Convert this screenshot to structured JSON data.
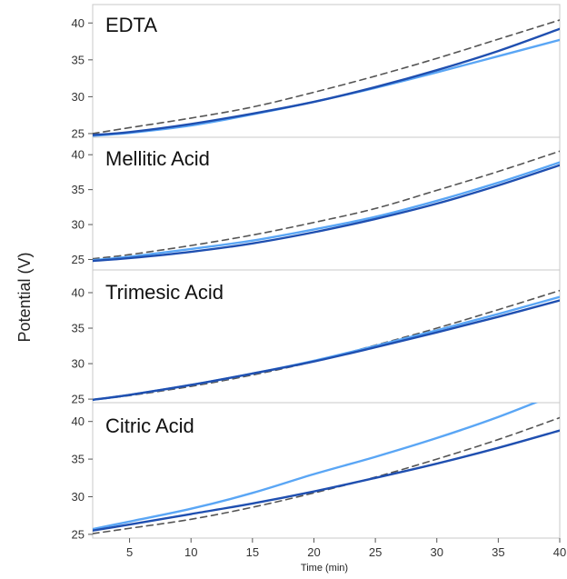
{
  "chart_data": {
    "type": "line",
    "ylabel": "Potential (V)",
    "xlabel": "Time (min)",
    "xlim": [
      2,
      40
    ],
    "x_ticks": [
      5,
      10,
      15,
      20,
      25,
      30,
      35,
      40
    ],
    "y_ticks": [
      25,
      30,
      35,
      40
    ],
    "grid": false,
    "colors": {
      "dark_series": "#1f4fb0",
      "light_series": "#5aa6f5",
      "dashed_series": "#555555"
    },
    "x": [
      2,
      5,
      10,
      15,
      20,
      25,
      30,
      35,
      40
    ],
    "panels": [
      {
        "title": "EDTA",
        "ylim": [
          24.5,
          42.5
        ],
        "series": [
          {
            "style": "dark",
            "values": [
              24.8,
              25.2,
              26.3,
              27.7,
              29.3,
              31.3,
              33.6,
              36.2,
              39.2
            ]
          },
          {
            "style": "light",
            "values": [
              24.7,
              25.1,
              26.1,
              27.6,
              29.3,
              31.2,
              33.3,
              35.5,
              37.7
            ]
          },
          {
            "style": "dashed",
            "values": [
              25.0,
              25.8,
              27.1,
              28.6,
              30.6,
              32.8,
              35.2,
              37.8,
              40.4
            ]
          }
        ]
      },
      {
        "title": "Mellitic Acid",
        "ylim": [
          23.5,
          42.5
        ],
        "series": [
          {
            "style": "dark",
            "values": [
              24.8,
              25.2,
              26.1,
              27.3,
              28.9,
              30.8,
              33.0,
              35.6,
              38.5
            ]
          },
          {
            "style": "light",
            "values": [
              24.9,
              25.4,
              26.5,
              27.7,
              29.3,
              31.1,
              33.4,
              36.0,
              38.9
            ]
          },
          {
            "style": "dashed",
            "values": [
              25.1,
              25.7,
              27.0,
              28.5,
              30.3,
              32.3,
              34.9,
              37.6,
              40.5
            ]
          }
        ]
      },
      {
        "title": "Trimesic Acid",
        "ylim": [
          24.5,
          43.2
        ],
        "series": [
          {
            "style": "dark",
            "values": [
              24.9,
              25.6,
              27.0,
              28.6,
              30.3,
              32.3,
              34.4,
              36.6,
              38.9
            ]
          },
          {
            "style": "light",
            "values": [
              24.9,
              25.6,
              27.0,
              28.6,
              30.4,
              32.5,
              34.7,
              37.0,
              39.4
            ]
          },
          {
            "style": "dashed",
            "values": [
              24.9,
              25.5,
              26.8,
              28.4,
              30.3,
              32.6,
              35.0,
              37.6,
              40.3
            ]
          }
        ]
      },
      {
        "title": "Citric Acid",
        "ylim": [
          24.5,
          42.5
        ],
        "series": [
          {
            "style": "dark",
            "values": [
              25.5,
              26.3,
              27.7,
              29.1,
              30.7,
              32.5,
              34.4,
              36.5,
              38.8
            ]
          },
          {
            "style": "light",
            "values": [
              25.7,
              26.7,
              28.4,
              30.5,
              33.0,
              35.3,
              37.8,
              40.6,
              43.8
            ]
          },
          {
            "style": "dashed",
            "values": [
              25.1,
              25.8,
              27.0,
              28.6,
              30.5,
              32.6,
              35.0,
              37.6,
              40.5
            ]
          }
        ]
      }
    ]
  }
}
